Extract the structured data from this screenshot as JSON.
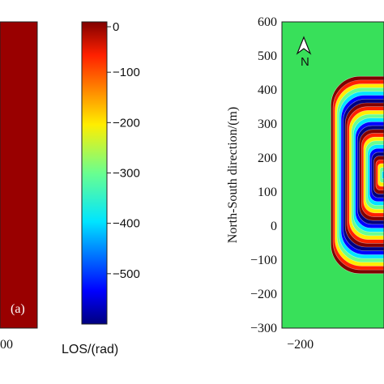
{
  "chart_data": [
    {
      "type": "heatmap",
      "panel_label": "(a)",
      "fill_color": "#990000",
      "xticks": [
        "00"
      ]
    },
    {
      "type": "colorbar",
      "label": "LOS/(rad)",
      "range": [
        -600,
        0
      ],
      "ticks": [
        0,
        -100,
        -200,
        -300,
        -400,
        -500
      ],
      "colormap": "jet"
    },
    {
      "type": "heatmap",
      "ylabel": "North-South direction/(m)",
      "yticks": [
        600,
        500,
        400,
        300,
        200,
        100,
        0,
        -100,
        -200,
        -300
      ],
      "ylim": [
        -300,
        600
      ],
      "xticks": [
        -200
      ],
      "xlim": [
        -290,
        210
      ],
      "background_color": "#38e05a",
      "north_arrow_label": "N",
      "fringe_pattern": {
        "center": [
          210,
          150
        ],
        "half_width": 260,
        "half_height": 290,
        "ring_count": 26
      }
    }
  ]
}
